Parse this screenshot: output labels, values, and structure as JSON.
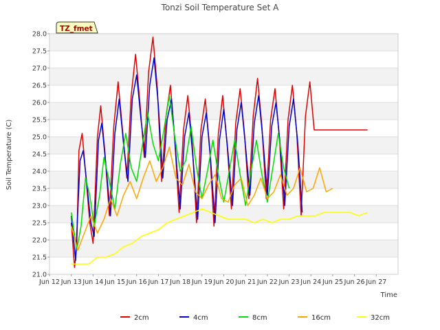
{
  "chart_data": {
    "type": "line",
    "title": "Tonzi Soil Temperature Set A",
    "xlabel": "Time",
    "ylabel": "Soil Temperature (C)",
    "ylim": [
      21.0,
      28.0
    ],
    "yticks": [
      21.0,
      21.5,
      22.0,
      22.5,
      23.0,
      23.5,
      24.0,
      24.5,
      25.0,
      25.5,
      26.0,
      26.5,
      27.0,
      27.5,
      28.0
    ],
    "xlim": [
      11,
      27
    ],
    "xticks": [
      {
        "x": 11,
        "label": "Jun 12"
      },
      {
        "x": 12,
        "label": "Jun 13"
      },
      {
        "x": 13,
        "label": "Jun 14"
      },
      {
        "x": 14,
        "label": "Jun 15"
      },
      {
        "x": 15,
        "label": "Jun 16"
      },
      {
        "x": 16,
        "label": "Jun 17"
      },
      {
        "x": 17,
        "label": "Jun 18"
      },
      {
        "x": 18,
        "label": "Jun 19"
      },
      {
        "x": 19,
        "label": "Jun 20"
      },
      {
        "x": 20,
        "label": "Jun 21"
      },
      {
        "x": 21,
        "label": "Jun 22"
      },
      {
        "x": 22,
        "label": "Jun 23"
      },
      {
        "x": 23,
        "label": "Jun 24"
      },
      {
        "x": 24,
        "label": "Jun 25"
      },
      {
        "x": 25,
        "label": "Jun 26"
      },
      {
        "x": 26,
        "label": "Jun 27"
      }
    ],
    "x_label_lines": [
      [
        "Jun",
        ""
      ],
      [
        "12",
        "Jun"
      ],
      [
        "13",
        "Jun"
      ],
      [
        "14",
        "Jun"
      ],
      [
        "15",
        "Jun"
      ],
      [
        "16",
        "Jun"
      ],
      [
        "17",
        "Jun"
      ],
      [
        "18",
        "Jun"
      ],
      [
        "19",
        "Jun"
      ],
      [
        "20",
        "Jun"
      ],
      [
        "21",
        "Jun"
      ],
      [
        "22",
        "Jun"
      ],
      [
        "23",
        "Jun"
      ],
      [
        "24",
        "Jun"
      ],
      [
        "25",
        "Jun"
      ],
      [
        "26",
        "Jun"
      ],
      [
        "27",
        ""
      ]
    ],
    "grid": true,
    "legend_position": "bottom-center",
    "annotation": "TZ_fmet",
    "series": [
      {
        "name": "2cm",
        "color": "#dd0000",
        "x": [
          12.0,
          12.15,
          12.25,
          12.35,
          12.5,
          12.65,
          12.85,
          13.0,
          13.2,
          13.35,
          13.55,
          13.75,
          13.95,
          14.15,
          14.35,
          14.55,
          14.75,
          14.95,
          15.15,
          15.35,
          15.55,
          15.75,
          15.95,
          16.15,
          16.35,
          16.55,
          16.75,
          16.95,
          17.15,
          17.35,
          17.55,
          17.75,
          17.95,
          18.15,
          18.35,
          18.55,
          18.75,
          18.95,
          19.15,
          19.35,
          19.55,
          19.75,
          19.95,
          20.15,
          20.35,
          20.55,
          20.75,
          20.95,
          21.15,
          21.35,
          21.55,
          21.75,
          21.95,
          22.15,
          22.35,
          22.55,
          22.75,
          22.95,
          23.15,
          23.35,
          23.55,
          23.75,
          23.95,
          24.15,
          24.35,
          24.55,
          24.75,
          24.95,
          25.15,
          25.35,
          25.55,
          25.6
        ],
        "y": [
          22.5,
          21.2,
          21.8,
          24.6,
          25.1,
          24.0,
          22.5,
          21.9,
          25.0,
          25.9,
          24.5,
          22.7,
          25.3,
          26.6,
          25.2,
          23.8,
          26.2,
          27.4,
          26.0,
          24.4,
          26.9,
          27.9,
          26.4,
          23.7,
          25.6,
          26.5,
          24.9,
          22.8,
          25.2,
          26.2,
          24.8,
          22.5,
          25.2,
          26.1,
          24.7,
          22.4,
          25.1,
          26.2,
          24.8,
          22.9,
          25.4,
          26.4,
          25.1,
          23.2,
          25.6,
          26.7,
          25.3,
          23.2,
          25.5,
          26.4,
          25.0,
          22.9,
          25.5,
          26.5,
          25.1,
          22.7,
          25.6,
          26.6,
          25.2,
          25.2,
          25.2,
          25.2,
          25.2,
          25.2,
          25.2,
          25.2,
          25.2,
          25.2,
          25.2,
          25.2,
          25.2,
          25.2
        ]
      },
      {
        "name": "4cm",
        "color": "#0000cc",
        "x": [
          12.0,
          12.2,
          12.4,
          12.55,
          12.7,
          12.9,
          13.05,
          13.25,
          13.4,
          13.6,
          13.8,
          14.0,
          14.2,
          14.4,
          14.6,
          14.8,
          15.0,
          15.2,
          15.4,
          15.6,
          15.8,
          16.0,
          16.2,
          16.4,
          16.6,
          16.8,
          17.0,
          17.2,
          17.4,
          17.6,
          17.8,
          18.0,
          18.2,
          18.4,
          18.6,
          18.8,
          19.0,
          19.2,
          19.4,
          19.6,
          19.8,
          20.0,
          20.2,
          20.4,
          20.6,
          20.8,
          21.0,
          21.2,
          21.4,
          21.6,
          21.8,
          22.0,
          22.2,
          22.4,
          22.6
        ],
        "y": [
          22.7,
          21.4,
          24.3,
          24.6,
          23.7,
          22.5,
          22.1,
          24.9,
          25.4,
          24.1,
          22.7,
          25.1,
          26.1,
          24.8,
          23.7,
          26.1,
          26.8,
          25.5,
          24.4,
          26.5,
          27.3,
          25.9,
          23.8,
          25.5,
          26.1,
          24.5,
          22.9,
          25.0,
          25.7,
          24.3,
          22.6,
          25.0,
          25.7,
          24.3,
          22.5,
          24.9,
          25.8,
          24.5,
          23.0,
          25.2,
          26.0,
          24.7,
          23.3,
          25.4,
          26.2,
          24.9,
          23.3,
          25.3,
          26.0,
          24.7,
          23.0,
          25.3,
          26.1,
          24.8,
          22.8
        ]
      },
      {
        "name": "8cm",
        "color": "#00dd00",
        "x": [
          12.0,
          12.25,
          12.45,
          12.65,
          12.85,
          13.05,
          13.3,
          13.5,
          13.75,
          14.0,
          14.25,
          14.5,
          14.75,
          15.0,
          15.25,
          15.5,
          15.75,
          16.0,
          16.25,
          16.5,
          16.75,
          17.0,
          17.25,
          17.5,
          17.75,
          18.0,
          18.25,
          18.5,
          18.75,
          19.0,
          19.25,
          19.5,
          19.75,
          20.0,
          20.25,
          20.5,
          20.75,
          21.0,
          21.25,
          21.5,
          21.75,
          22.0
        ],
        "y": [
          22.8,
          21.7,
          22.4,
          23.8,
          23.3,
          22.4,
          23.3,
          24.4,
          23.7,
          22.9,
          24.2,
          25.1,
          24.1,
          23.7,
          24.7,
          25.7,
          24.8,
          24.3,
          25.2,
          26.2,
          25.0,
          24.0,
          24.3,
          25.3,
          24.1,
          23.2,
          24.0,
          24.9,
          23.9,
          23.1,
          24.0,
          24.9,
          23.9,
          23.0,
          24.0,
          24.9,
          23.9,
          23.1,
          24.1,
          25.1,
          24.1,
          23.5
        ]
      },
      {
        "name": "16cm",
        "color": "#ffa500",
        "x": [
          12.0,
          12.3,
          12.6,
          12.9,
          13.2,
          13.5,
          13.8,
          14.1,
          14.4,
          14.7,
          15.0,
          15.3,
          15.6,
          15.9,
          16.2,
          16.5,
          16.8,
          17.1,
          17.4,
          17.7,
          18.0,
          18.3,
          18.6,
          18.9,
          19.2,
          19.5,
          19.8,
          20.1,
          20.4,
          20.7,
          21.0,
          21.3,
          21.6,
          21.9,
          22.2,
          22.5,
          22.8,
          23.1,
          23.4,
          23.7,
          24.0
        ],
        "y": [
          22.4,
          21.7,
          22.2,
          22.7,
          22.2,
          22.6,
          23.2,
          22.7,
          23.3,
          23.7,
          23.2,
          23.8,
          24.3,
          23.7,
          24.1,
          24.7,
          23.8,
          23.6,
          24.2,
          23.4,
          23.2,
          23.6,
          23.9,
          23.2,
          23.1,
          23.6,
          23.8,
          23.0,
          23.3,
          23.8,
          23.2,
          23.4,
          23.9,
          23.3,
          23.5,
          24.1,
          23.4,
          23.5,
          24.1,
          23.4,
          23.5
        ]
      },
      {
        "name": "32cm",
        "color": "#ffff00",
        "x": [
          12.0,
          12.4,
          12.8,
          13.2,
          13.6,
          14.0,
          14.4,
          14.8,
          15.2,
          15.6,
          16.0,
          16.4,
          16.8,
          17.2,
          17.6,
          18.0,
          18.4,
          18.8,
          19.2,
          19.6,
          20.0,
          20.4,
          20.8,
          21.2,
          21.6,
          22.0,
          22.4,
          22.8,
          23.2,
          23.6,
          24.0,
          24.4,
          24.8,
          25.2,
          25.6
        ],
        "y": [
          21.3,
          21.3,
          21.3,
          21.5,
          21.5,
          21.6,
          21.8,
          21.9,
          22.1,
          22.2,
          22.3,
          22.5,
          22.6,
          22.7,
          22.8,
          22.9,
          22.8,
          22.7,
          22.6,
          22.6,
          22.6,
          22.5,
          22.6,
          22.5,
          22.6,
          22.6,
          22.7,
          22.7,
          22.7,
          22.8,
          22.8,
          22.8,
          22.8,
          22.7,
          22.8
        ]
      }
    ]
  }
}
